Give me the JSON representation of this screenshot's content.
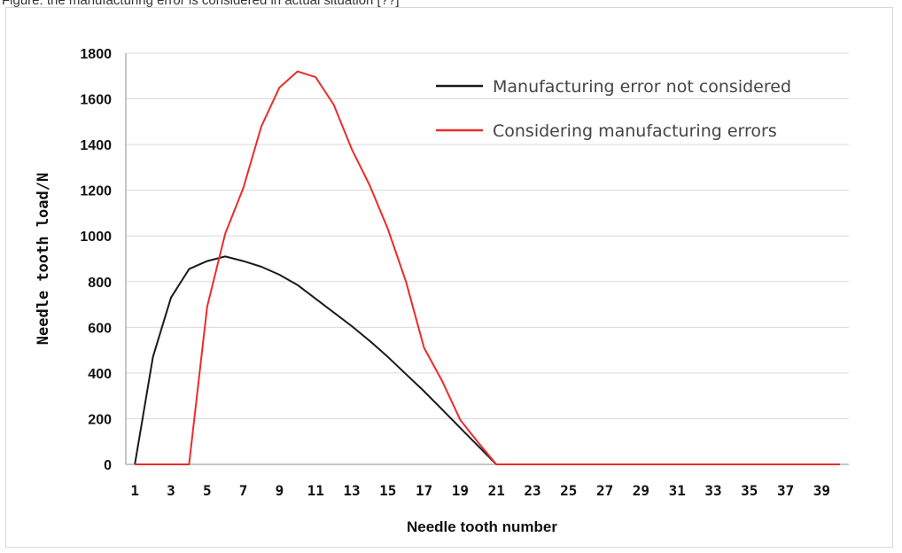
{
  "caption": "Figure: the manufacturing error is considered in actual situation [??]",
  "chart_data": {
    "type": "line",
    "xlabel": "Needle tooth number",
    "ylabel": "Needle tooth load/N",
    "ylim": [
      0,
      1800
    ],
    "yticks": [
      0,
      200,
      400,
      600,
      800,
      1000,
      1200,
      1400,
      1600,
      1800
    ],
    "xlim": [
      1,
      40
    ],
    "xticks": [
      1,
      3,
      5,
      7,
      9,
      11,
      13,
      15,
      17,
      19,
      21,
      23,
      25,
      27,
      29,
      31,
      33,
      35,
      37,
      39
    ],
    "grid": "horizontal",
    "legend_position": "top-right",
    "x": [
      1,
      2,
      3,
      4,
      5,
      6,
      7,
      8,
      9,
      10,
      11,
      12,
      13,
      14,
      15,
      16,
      17,
      18,
      19,
      20,
      21,
      22,
      23,
      24,
      25,
      26,
      27,
      28,
      29,
      30,
      31,
      32,
      33,
      34,
      35,
      36,
      37,
      38,
      39,
      40
    ],
    "series": [
      {
        "name": "Manufacturing error not considered",
        "color": "#1a1a1a",
        "values": [
          0,
          470,
          730,
          855,
          890,
          910,
          890,
          865,
          830,
          785,
          725,
          665,
          605,
          540,
          470,
          395,
          320,
          240,
          160,
          80,
          0,
          0,
          0,
          0,
          0,
          0,
          0,
          0,
          0,
          0,
          0,
          0,
          0,
          0,
          0,
          0,
          0,
          0,
          0,
          0
        ]
      },
      {
        "name": "Considering manufacturing errors",
        "color": "#ee2a2a",
        "values": [
          0,
          0,
          0,
          0,
          690,
          1010,
          1210,
          1480,
          1650,
          1720,
          1695,
          1575,
          1380,
          1220,
          1030,
          800,
          510,
          365,
          195,
          95,
          0,
          0,
          0,
          0,
          0,
          0,
          0,
          0,
          0,
          0,
          0,
          0,
          0,
          0,
          0,
          0,
          0,
          0,
          0,
          0
        ]
      }
    ]
  }
}
